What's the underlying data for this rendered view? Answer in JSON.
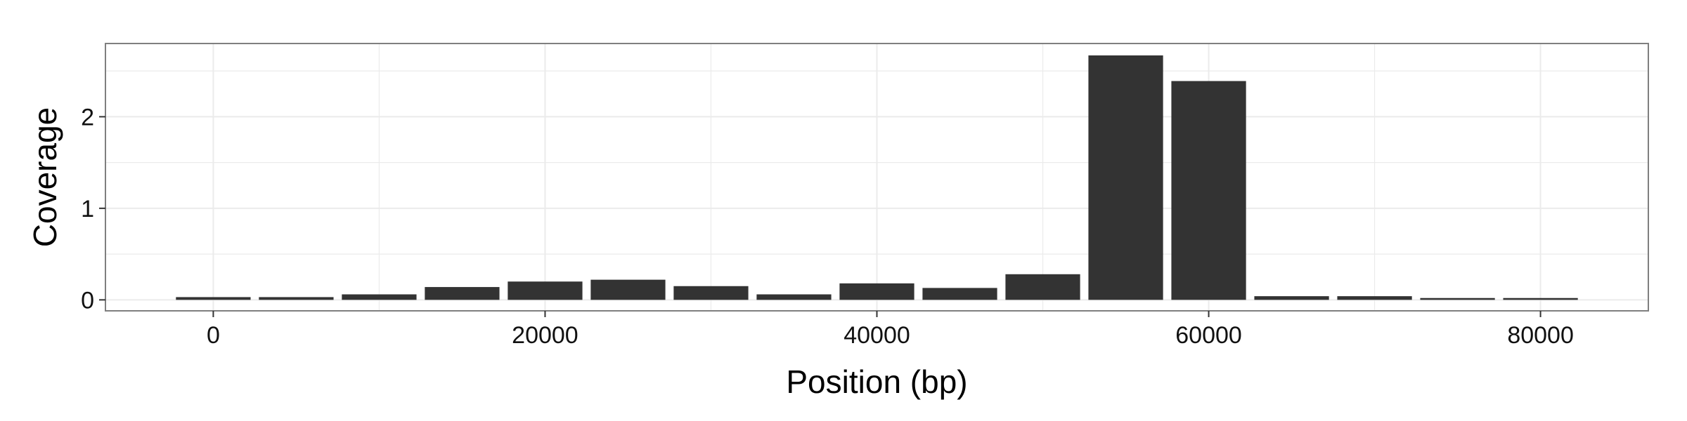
{
  "chart_data": {
    "type": "bar",
    "title": "",
    "xlabel": "Position (bp)",
    "ylabel": "Coverage",
    "x": [
      0,
      5000,
      10000,
      15000,
      20000,
      25000,
      30000,
      35000,
      40000,
      45000,
      50000,
      55000,
      60000,
      65000,
      70000,
      75000,
      80000
    ],
    "values": [
      0.03,
      0.03,
      0.06,
      0.14,
      0.2,
      0.22,
      0.15,
      0.06,
      0.18,
      0.13,
      0.28,
      2.67,
      2.39,
      0.04,
      0.04,
      0.02,
      0.02
    ],
    "xlim": [
      -6500,
      86500
    ],
    "ylim": [
      -0.12,
      2.8
    ],
    "x_ticks": [
      0,
      20000,
      40000,
      60000,
      80000
    ],
    "x_tick_labels": [
      "0",
      "20000",
      "40000",
      "60000",
      "80000"
    ],
    "y_ticks": [
      0,
      1,
      2
    ],
    "y_tick_labels": [
      "0",
      "1",
      "2"
    ],
    "bar_width": 4500,
    "grid": true,
    "legend": "none",
    "colors": {
      "bar": "#333333",
      "grid": "#ebebeb",
      "panel_border": "#7f7f7f",
      "axis_tick": "#333333"
    }
  }
}
